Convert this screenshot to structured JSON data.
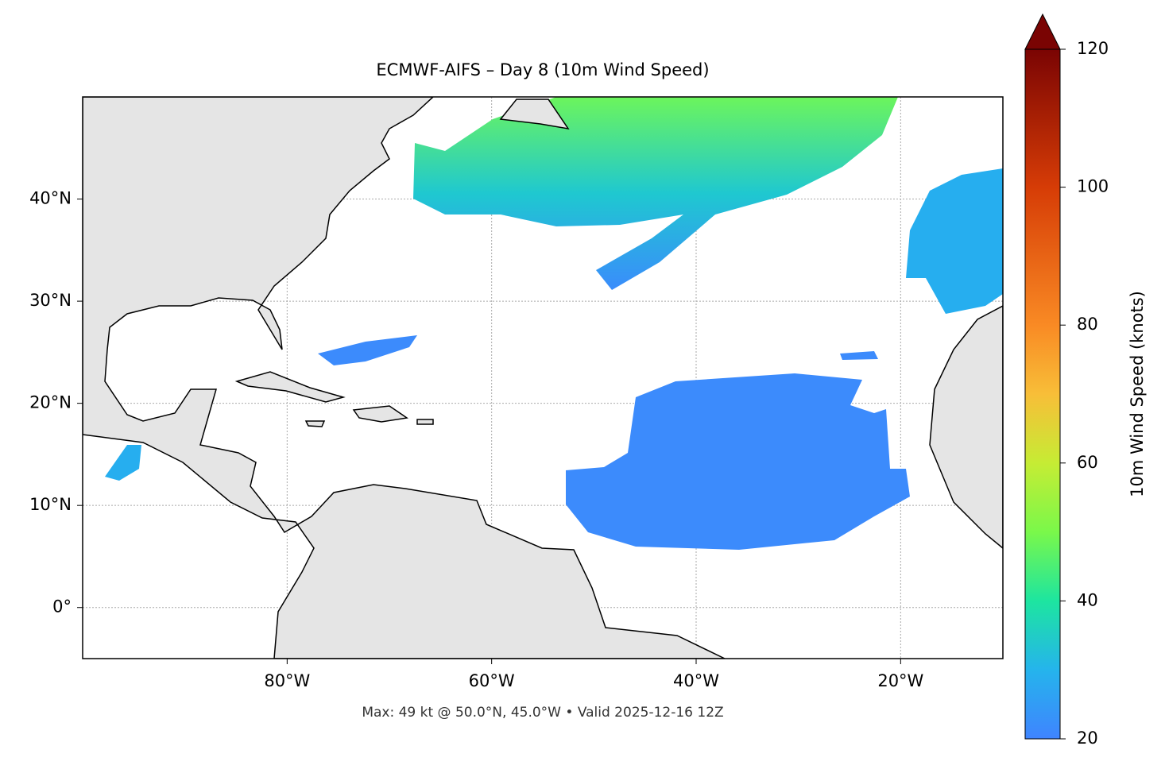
{
  "chart_data": {
    "type": "map",
    "title": "ECMWF-AIFS – Day 8 (10m Wind Speed)",
    "footer": "Max: 49 kt @ 50.0°N, 45.0°W • Valid 2025-12-16 12Z",
    "xlim": [
      -100,
      -10
    ],
    "ylim": [
      -5,
      50
    ],
    "xticks": [
      {
        "value": -80,
        "label": "80°W"
      },
      {
        "value": -60,
        "label": "60°W"
      },
      {
        "value": -40,
        "label": "40°W"
      },
      {
        "value": -20,
        "label": "20°W"
      }
    ],
    "yticks": [
      {
        "value": 0,
        "label": "0°"
      },
      {
        "value": 10,
        "label": "10°N"
      },
      {
        "value": 20,
        "label": "20°N"
      },
      {
        "value": 30,
        "label": "30°N"
      },
      {
        "value": 40,
        "label": "40°N"
      }
    ],
    "grid": true,
    "colorbar": {
      "label": "10m Wind Speed (knots)",
      "lim": [
        20,
        120
      ],
      "ticks": [
        20,
        40,
        60,
        80,
        100,
        120
      ]
    }
  }
}
